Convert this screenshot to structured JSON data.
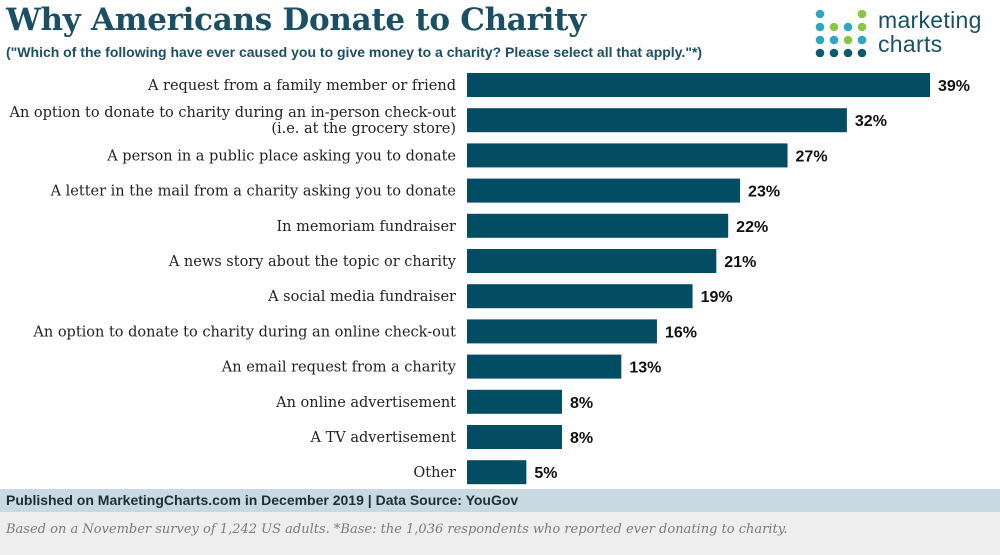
{
  "header": {
    "title": "Why Americans Donate to Charity",
    "subtitle": "(\"Which of the following have ever caused you to give money to a charity? Please select all that apply.\"*)"
  },
  "logo": {
    "line1": "marketing",
    "line2": "charts",
    "dot_colors": [
      "#2fa6c1",
      "#8ac543",
      "#0c5a70"
    ]
  },
  "chart_data": {
    "type": "bar",
    "orientation": "horizontal",
    "categories": [
      [
        "A request from a family member or friend"
      ],
      [
        "An option to donate to charity during an in-person check-out",
        "(i.e. at the grocery store)"
      ],
      [
        "A person in a public place asking you to donate"
      ],
      [
        "A letter in the mail from a charity asking you to donate"
      ],
      [
        "In memoriam fundraiser"
      ],
      [
        "A news story about the topic or charity"
      ],
      [
        "A social media fundraiser"
      ],
      [
        "An option to donate to charity during an online check-out"
      ],
      [
        "An email request from a charity"
      ],
      [
        "An online advertisement"
      ],
      [
        "A TV advertisement"
      ],
      [
        "Other"
      ]
    ],
    "values": [
      39,
      32,
      27,
      23,
      22,
      21,
      19,
      16,
      13,
      8,
      8,
      5
    ],
    "value_labels": [
      "39%",
      "32%",
      "27%",
      "23%",
      "22%",
      "21%",
      "19%",
      "16%",
      "13%",
      "8%",
      "8%",
      "5%"
    ],
    "unit": "%",
    "bar_color": "#034d63",
    "xlim": [
      0,
      39
    ],
    "grid": false,
    "legend": "none"
  },
  "footer": {
    "source": "Published on MarketingCharts.com in December 2019 | Data Source: YouGov",
    "note": "Based on a November survey of 1,242 US adults. *Base: the 1,036 respondents who reported ever donating to charity."
  }
}
